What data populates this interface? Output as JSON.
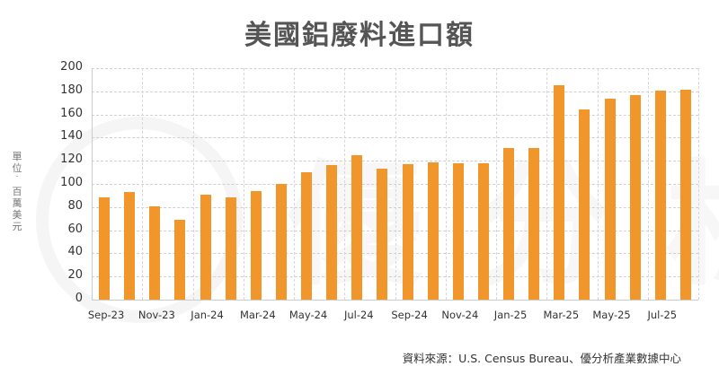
{
  "title": "美國鋁廢料進口額",
  "ylabel": "單位：百萬美元",
  "source": "資料來源：U.S. Census Bureau、優分析產業數據中心",
  "watermark": "優分析",
  "colors": {
    "bar": "#F0962A",
    "title": "#555555",
    "grid": "#cfcfcf"
  },
  "chart_data": {
    "type": "bar",
    "title": "美國鋁廢料進口額",
    "xlabel": "",
    "ylabel": "單位：百萬美元",
    "ylim": [
      0,
      200
    ],
    "yticks": [
      0,
      20,
      40,
      60,
      80,
      100,
      120,
      140,
      160,
      180,
      200
    ],
    "grid": true,
    "legend": null,
    "categories": [
      "Sep-23",
      "Oct-23",
      "Nov-23",
      "Dec-23",
      "Jan-24",
      "Feb-24",
      "Mar-24",
      "Apr-24",
      "May-24",
      "Jun-24",
      "Jul-24",
      "Aug-24",
      "Sep-24",
      "Oct-24",
      "Nov-24",
      "Dec-24",
      "Jan-25",
      "Feb-25",
      "Mar-25",
      "Apr-25",
      "May-25",
      "Jun-25",
      "Jul-25",
      "Aug-25"
    ],
    "xtick_labels": [
      "Sep-23",
      "Nov-23",
      "Jan-24",
      "Mar-24",
      "May-24",
      "Jul-24",
      "Sep-24",
      "Nov-24",
      "Jan-25",
      "Mar-25",
      "May-25",
      "Jul-25"
    ],
    "values": [
      88,
      93,
      81,
      69,
      91,
      88,
      94,
      100,
      110,
      116,
      125,
      113,
      117,
      119,
      118,
      118,
      131,
      131,
      185,
      164,
      174,
      177,
      181,
      181.5
    ]
  }
}
